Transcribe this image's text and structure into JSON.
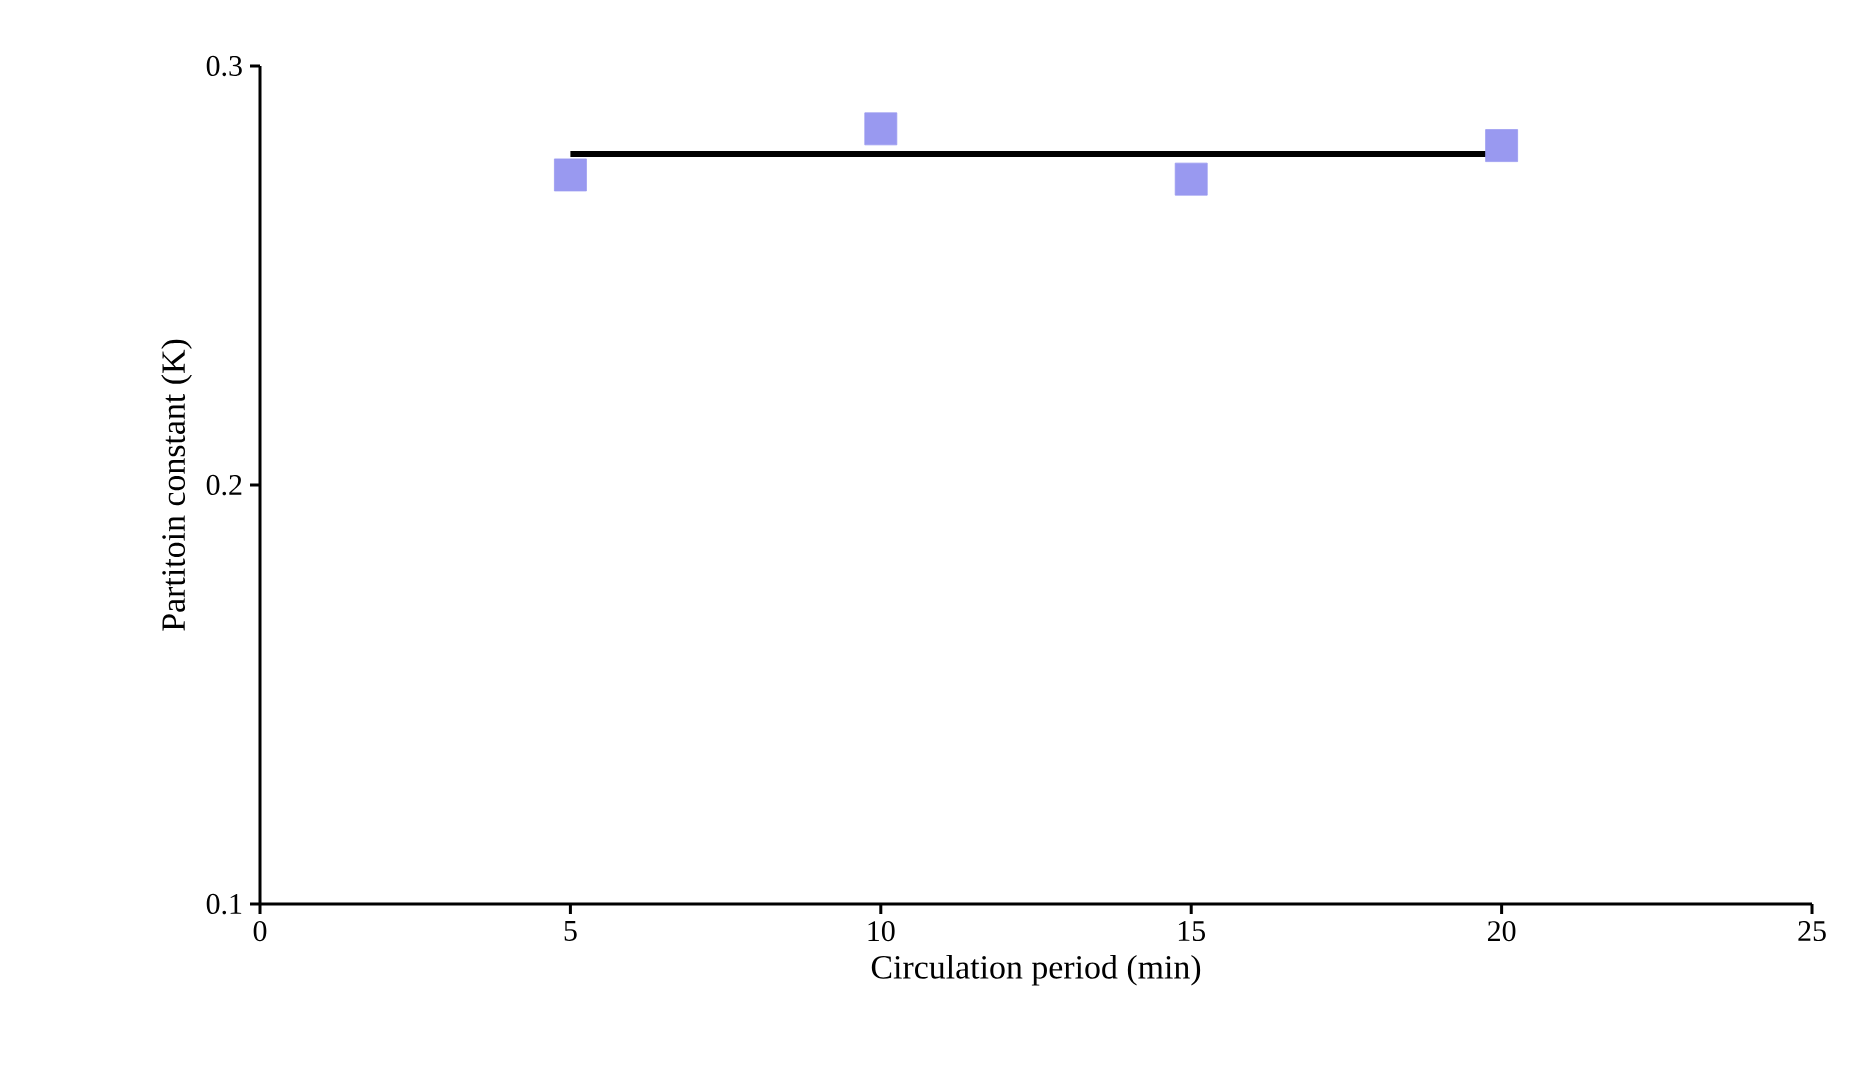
{
  "chart_data": {
    "type": "scatter",
    "xlabel": "Circulation period (min)",
    "ylabel": "Partitoin constant (K)",
    "xlim": [
      0,
      25
    ],
    "xticks": [
      0,
      5,
      10,
      15,
      20,
      25
    ],
    "ylim": [
      0.1,
      0.3
    ],
    "yticks": [
      0.1,
      0.2,
      0.3
    ],
    "series": [
      {
        "color": "#9999f0",
        "marker": "square",
        "x": [
          5,
          10,
          15,
          20
        ],
        "values": [
          0.274,
          0.285,
          0.273,
          0.281
        ]
      },
      {
        "type": "line",
        "marker": "none",
        "color": "#000000",
        "x": [
          5,
          20
        ],
        "values": [
          0.279,
          0.279
        ]
      }
    ]
  }
}
